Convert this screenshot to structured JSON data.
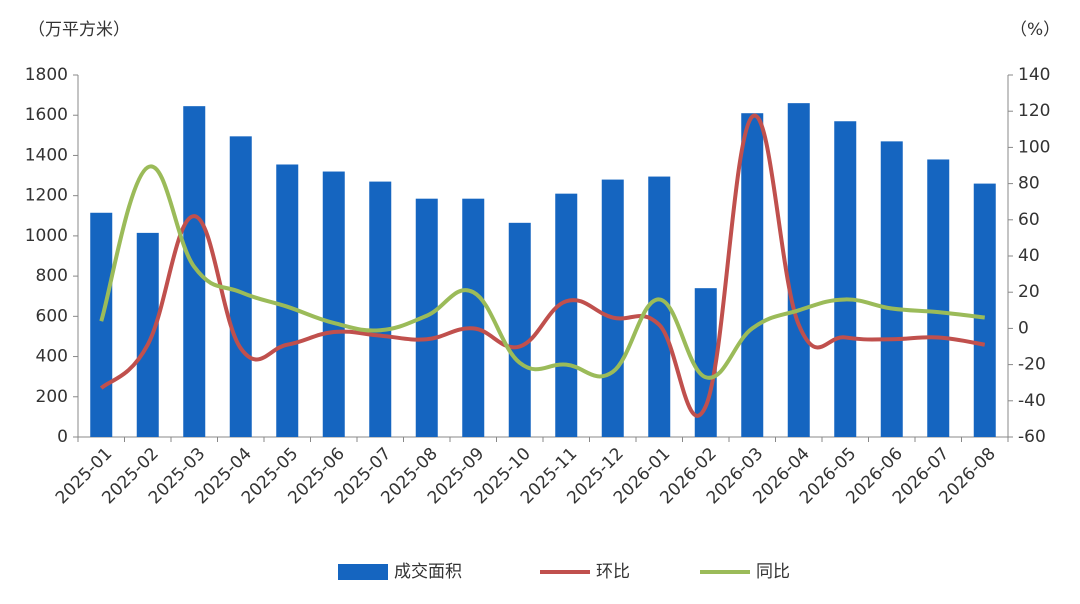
{
  "chart_data": {
    "type": "bar-line",
    "y_unit": "（万平方米）",
    "y2_unit": "（%）",
    "categories": [
      "2025-01",
      "2025-02",
      "2025-03",
      "2025-04",
      "2025-05",
      "2025-06",
      "2025-07",
      "2025-08",
      "2025-09",
      "2025-10",
      "2025-11",
      "2025-12",
      "2026-01",
      "2026-02",
      "2026-03",
      "2026-04",
      "2026-05",
      "2026-06",
      "2026-07",
      "2026-08"
    ],
    "series": [
      {
        "name": "成交面积",
        "type": "bar",
        "color": "#1565c0",
        "values": [
          1115,
          1015,
          1645,
          1495,
          1355,
          1320,
          1270,
          1185,
          1185,
          1065,
          1210,
          1280,
          1295,
          740,
          1610,
          1660,
          1570,
          1470,
          1380,
          1260
        ]
      },
      {
        "name": "环比",
        "type": "line",
        "axis": "y2",
        "color": "#c0504d",
        "values": [
          -33,
          -9,
          62,
          -11,
          -9,
          -2,
          -4,
          -6,
          0,
          -10,
          15,
          6,
          2,
          -43,
          117,
          2,
          -5,
          -6,
          -5,
          -9
        ]
      },
      {
        "name": "同比",
        "type": "line",
        "axis": "y2",
        "color": "#9bbb59",
        "values": [
          4,
          89,
          34,
          20,
          12,
          3,
          -1,
          7,
          20,
          -19,
          -20,
          -24,
          16,
          -27,
          0,
          10,
          16,
          11,
          9,
          6
        ]
      }
    ],
    "ylim": [
      0,
      1800
    ],
    "yticks": [
      0,
      200,
      400,
      600,
      800,
      1000,
      1200,
      1400,
      1600,
      1800
    ],
    "y2lim": [
      -60,
      140
    ],
    "y2ticks": [
      -60,
      -40,
      -20,
      0,
      20,
      40,
      60,
      80,
      100,
      120,
      140
    ]
  }
}
